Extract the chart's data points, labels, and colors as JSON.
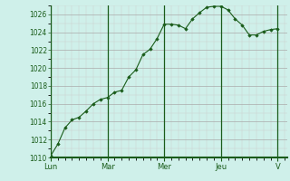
{
  "background_color": "#cff0ea",
  "line_color": "#1a5c1a",
  "marker_color": "#1a5c1a",
  "grid_color_major": "#aaaaaa",
  "grid_color_minor": "#cccccc",
  "grid_color_red": "#cc9999",
  "axis_color": "#1a5c1a",
  "tick_label_color": "#1a5c1a",
  "ylim": [
    1010,
    1027
  ],
  "yticks": [
    1010,
    1012,
    1014,
    1016,
    1018,
    1020,
    1022,
    1024,
    1026
  ],
  "day_labels": [
    "Lun",
    "Mar",
    "Mer",
    "Jeu",
    "V"
  ],
  "day_positions": [
    0,
    24,
    48,
    72,
    96
  ],
  "xlim": [
    0,
    100
  ],
  "x_values": [
    0,
    3,
    6,
    9,
    12,
    15,
    18,
    21,
    24,
    27,
    30,
    33,
    36,
    39,
    42,
    45,
    48,
    51,
    54,
    57,
    60,
    63,
    66,
    69,
    72,
    75,
    78,
    81,
    84,
    87,
    90,
    93,
    96
  ],
  "y_values": [
    1010.2,
    1011.5,
    1013.3,
    1014.2,
    1014.5,
    1015.2,
    1016.0,
    1016.5,
    1016.7,
    1017.3,
    1017.5,
    1019.0,
    1019.8,
    1021.5,
    1022.1,
    1023.3,
    1024.9,
    1024.9,
    1024.8,
    1024.4,
    1025.5,
    1026.2,
    1026.8,
    1026.9,
    1026.9,
    1026.5,
    1025.5,
    1024.8,
    1023.7,
    1023.7,
    1024.1,
    1024.3,
    1024.4
  ]
}
